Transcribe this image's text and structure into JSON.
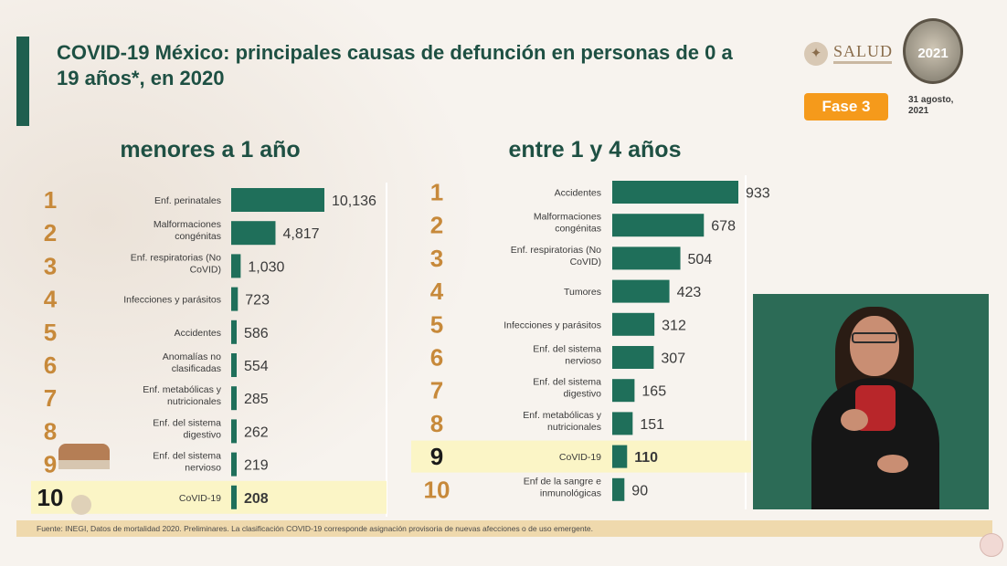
{
  "header": {
    "title": "COVID-19 México: principales causas de defunción en personas de 0 a 19 años*, en 2020",
    "logo_text": "SALUD",
    "seal_text": "2021",
    "fase_label": "Fase 3",
    "date_text": "31 agosto, 2021"
  },
  "footer": {
    "source": "Fuente: INEGI, Datos de mortalidad 2020. Preliminares. La clasificación COVID-19 corresponde asignación provisoria de nuevas afecciones o de uso emergente."
  },
  "colors": {
    "bar": "#1f6f5a",
    "rank": "#c7893a",
    "highlight": "#fbf5c6",
    "title": "#1e5043"
  },
  "chart_data": [
    {
      "type": "bar",
      "orientation": "horizontal",
      "title": "menores a 1 año",
      "ranks": [
        "1",
        "2",
        "3",
        "4",
        "5",
        "6",
        "7",
        "8",
        "9",
        "10"
      ],
      "categories": [
        "Enf. perinatales",
        "Malformaciones congénitas",
        "Enf. respiratorias (No CoVID)",
        "Infecciones y parásitos",
        "Accidentes",
        "Anomalías no clasificadas",
        "Enf. metabólicas y nutricionales",
        "Enf. del sistema digestivo",
        "Enf. del sistema nervioso",
        "CoVID-19"
      ],
      "values": [
        10136,
        4817,
        1030,
        723,
        586,
        554,
        285,
        262,
        219,
        208
      ],
      "value_labels": [
        "10,136",
        "4,817",
        "1,030",
        "723",
        "586",
        "554",
        "285",
        "262",
        "219",
        "208"
      ],
      "highlight_index": 9
    },
    {
      "type": "bar",
      "orientation": "horizontal",
      "title": "entre 1 y 4 años",
      "ranks": [
        "1",
        "2",
        "3",
        "4",
        "5",
        "6",
        "7",
        "8",
        "9",
        "10"
      ],
      "categories": [
        "Accidentes",
        "Malformaciones congénitas",
        "Enf. respiratorias (No CoVID)",
        "Tumores",
        "Infecciones y parásitos",
        "Enf. del sistema nervioso",
        "Enf. del sistema digestivo",
        "Enf. metabólicas y nutricionales",
        "CoVID-19",
        "Enf de la sangre e inmunológicas"
      ],
      "values": [
        933,
        678,
        504,
        423,
        312,
        307,
        165,
        151,
        110,
        90
      ],
      "value_labels": [
        "933",
        "678",
        "504",
        "423",
        "312",
        "307",
        "165",
        "151",
        "110",
        "90"
      ],
      "highlight_index": 8
    }
  ]
}
